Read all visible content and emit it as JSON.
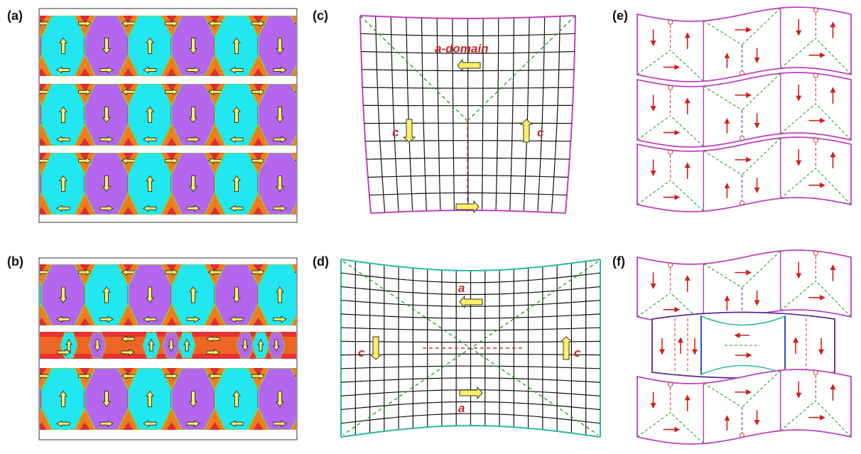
{
  "panels": {
    "a": {
      "label": "(a)"
    },
    "b": {
      "label": "(b)"
    },
    "c": {
      "label": "(c)",
      "domain_label": "a-domain",
      "left_label": "c",
      "right_label": "c"
    },
    "d": {
      "label": "(d)",
      "top_label": "a",
      "bottom_label": "a",
      "left_label": "c",
      "right_label": "c"
    },
    "e": {
      "label": "(e)"
    },
    "f": {
      "label": "(f)"
    }
  }
}
